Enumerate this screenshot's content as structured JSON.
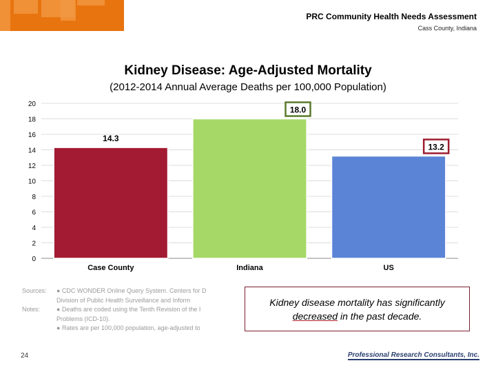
{
  "header": {
    "title": "PRC Community Health Needs Assessment",
    "subtitle": "Cass County, Indiana"
  },
  "chart_data": {
    "type": "bar",
    "title": "Kidney Disease: Age-Adjusted Mortality",
    "subtitle": "(2012-2014 Annual Average Deaths per 100,000 Population)",
    "categories": [
      "Case County",
      "Indiana",
      "US"
    ],
    "values": [
      14.3,
      18.0,
      13.2
    ],
    "labels": [
      "14.3",
      "18.0",
      "13.2"
    ],
    "colors": [
      "#a31b33",
      "#a6d868",
      "#5b84d6"
    ],
    "label_borders": [
      "none",
      "#5a7a2a",
      "#9e1b30"
    ],
    "ylim": [
      0,
      20
    ],
    "yticks": [
      0,
      2,
      4,
      6,
      8,
      10,
      12,
      14,
      16,
      18,
      20
    ],
    "xlabel": "",
    "ylabel": "",
    "grid": true
  },
  "notes": {
    "sources_label": "Sources:",
    "sources_text": "●   CDC WONDER Online Query System. Centers for D",
    "sources_text2": "Division of Public Health Surveillance and          Inform",
    "notes_label": "Notes:",
    "notes_text": "●   Deaths are coded using the Tenth Revision of the I",
    "notes_text2": "Problems (ICD-10).",
    "notes_text3": "●   Rates are per 100,000 population, age-adjusted to"
  },
  "callout": {
    "text_before": "Kidney disease mortality has significantly ",
    "text_underlined": "decreased",
    "text_after": " in the past decade."
  },
  "page_number": "24",
  "footer_logo": "Professional Research Consultants, Inc."
}
